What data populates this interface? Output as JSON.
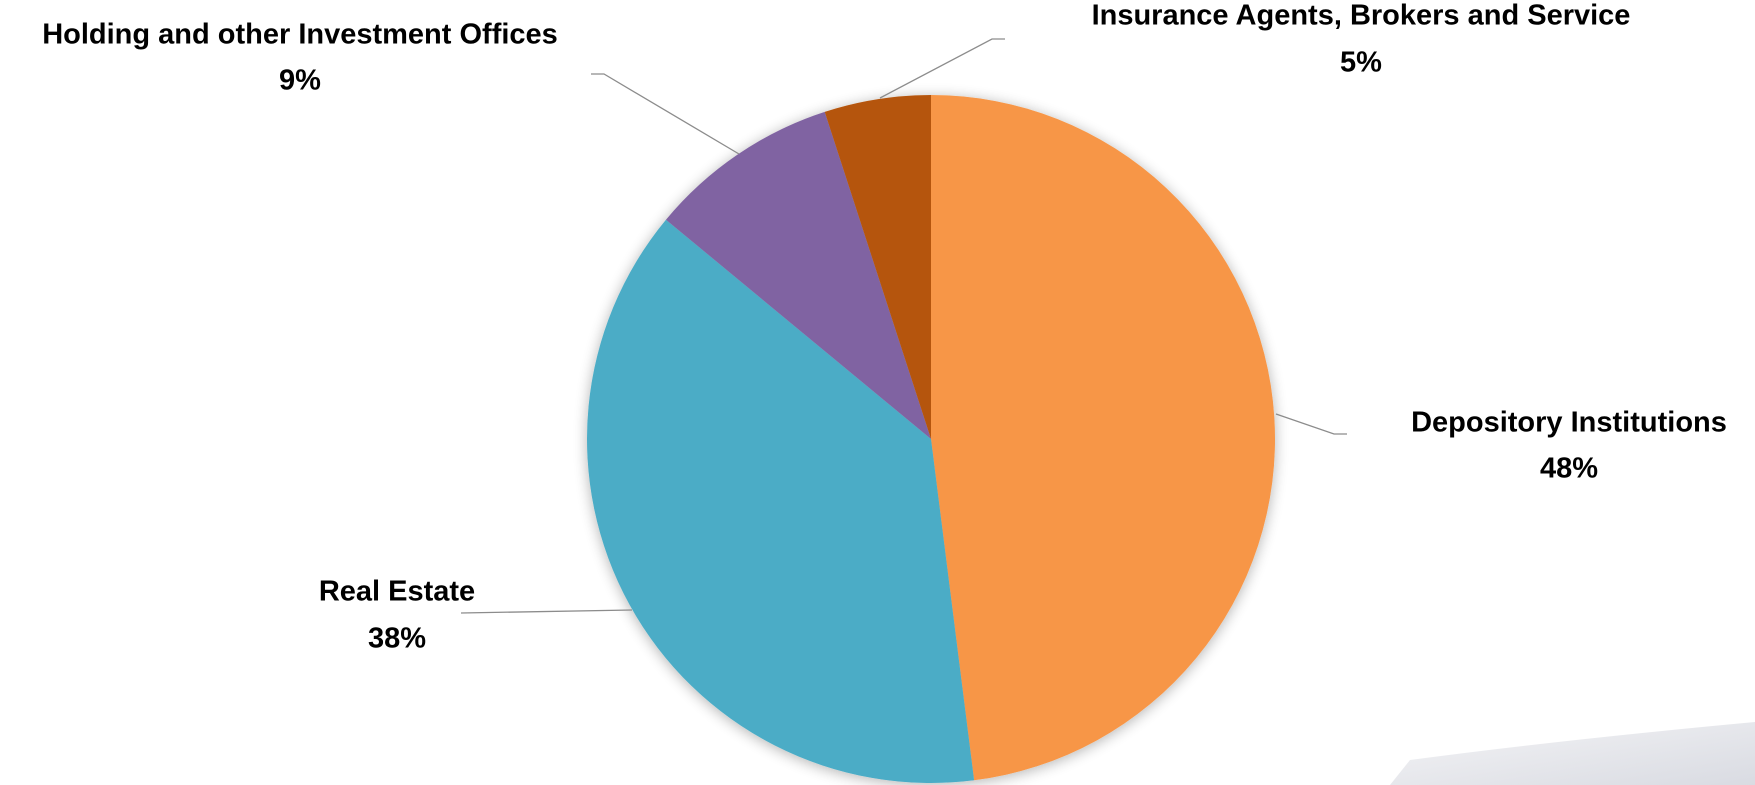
{
  "chart_data": {
    "type": "pie",
    "categories": [
      "Depository Institutions",
      "Real Estate",
      "Holding and other Investment Offices",
      "Insurance Agents, Brokers and Service"
    ],
    "values": [
      48,
      38,
      9,
      5
    ],
    "value_labels": [
      "48%",
      "38%",
      "9%",
      "5%"
    ],
    "colors": [
      "#f79646",
      "#4bacc6",
      "#8064a2",
      "#b5540a"
    ]
  }
}
